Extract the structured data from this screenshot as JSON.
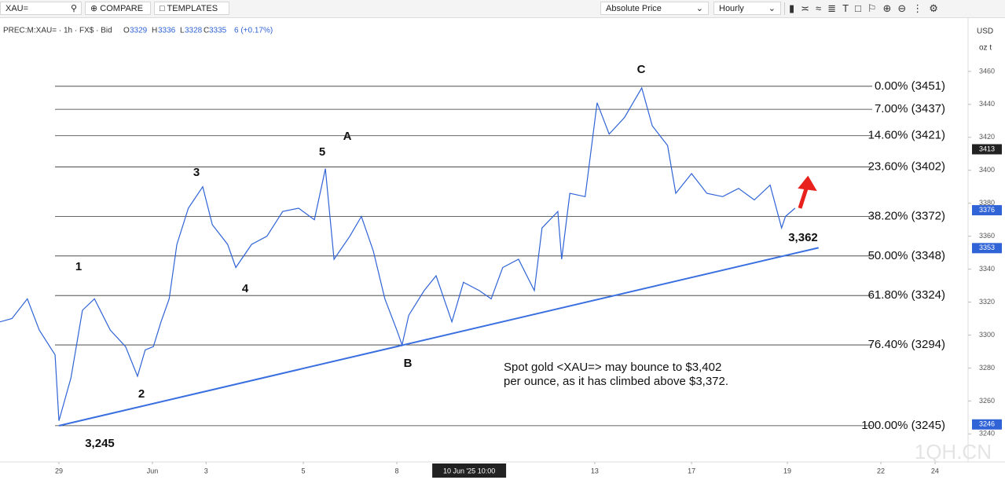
{
  "toolbar": {
    "search": "XAU=",
    "compare": "COMPARE",
    "templates": "TEMPLATES",
    "price_mode": "Absolute Price",
    "interval": "Hourly"
  },
  "legend": {
    "symbol": "PREC:M:XAU= · 1h · FX$ · Bid",
    "open_key": "O",
    "open": 3329,
    "high_key": "H",
    "high": 3336,
    "low_key": "L",
    "low": 3328,
    "close_key": "C",
    "close": 3335,
    "change": "6 (+0.17%)"
  },
  "axis_units": {
    "currency": "USD",
    "unit": "oz t"
  },
  "watermark": "1QH.CN",
  "chart_data": {
    "type": "line",
    "color": "#2f63d6",
    "x": [
      -1.23,
      -0.98,
      -0.66,
      -0.41,
      -0.08,
      0,
      0.25,
      0.49,
      0.74,
      1.07,
      1.39,
      1.64,
      1.8,
      1.97,
      2.13,
      2.3,
      2.46,
      2.7,
      3,
      3.2,
      3.52,
      3.69,
      4.02,
      4.34,
      4.67,
      5,
      5.33,
      5.56,
      5.74,
      6.07,
      6.31,
      6.56,
      6.8,
      7.05,
      7.16,
      7.3,
      7.62,
      7.87,
      8.2,
      8.44,
      8.77,
      9.02,
      9.26,
      9.59,
      9.92,
      10.08,
      10.41,
      10.49,
      10.66,
      10.98,
      11.23,
      11.48,
      11.8,
      12.16,
      12.38,
      12.7,
      12.87,
      13.2,
      13.52,
      13.85,
      14.18,
      14.51,
      14.84,
      15.08,
      15.16,
      15.36
    ],
    "values": [
      3308,
      3310,
      3322,
      3303,
      3288,
      3248,
      3274,
      3315,
      3322,
      3303,
      3293,
      3275,
      3291,
      3293,
      3308,
      3322,
      3355,
      3377,
      3390,
      3367,
      3355,
      3341,
      3355,
      3360,
      3375,
      3377,
      3370,
      3401,
      3346,
      3360,
      3372,
      3351,
      3322,
      3303,
      3294,
      3312,
      3327,
      3336,
      3308,
      3332,
      3327,
      3322,
      3341,
      3346,
      3327,
      3365,
      3375,
      3346,
      3386,
      3384,
      3441,
      3422,
      3432,
      3450,
      3427,
      3415,
      3386,
      3398,
      3386,
      3384,
      3389,
      3382,
      3391,
      3365,
      3372,
      3377
    ],
    "xlim": [
      -1.23,
      18.97
    ],
    "ylim": [
      3223,
      3490
    ],
    "yticks": [
      3240,
      3260,
      3280,
      3300,
      3320,
      3340,
      3360,
      3380,
      3400,
      3420,
      3440,
      3460
    ],
    "xticks": [
      {
        "value": 0,
        "label": "29"
      },
      {
        "value": 1.95,
        "label": "Jun"
      },
      {
        "value": 3.07,
        "label": "3"
      },
      {
        "value": 5.1,
        "label": "5"
      },
      {
        "value": 7.05,
        "label": "8"
      },
      {
        "value": 11.18,
        "label": "13"
      },
      {
        "value": 13.2,
        "label": "17"
      },
      {
        "value": 15.2,
        "label": "19"
      },
      {
        "value": 17.15,
        "label": "22"
      },
      {
        "value": 18.28,
        "label": "24"
      }
    ],
    "crosshair_x": {
      "value": 8.56,
      "label": "10 Jun '25   10:00"
    },
    "fib_levels": [
      {
        "value": 3451,
        "label": "0.00% (3451)"
      },
      {
        "value": 3437,
        "label": "7.00% (3437)"
      },
      {
        "value": 3421,
        "label": "14.60% (3421)"
      },
      {
        "value": 3402,
        "label": "23.60% (3402)"
      },
      {
        "value": 3372,
        "label": "38.20% (3372)"
      },
      {
        "value": 3348,
        "label": "50.00% (3348)"
      },
      {
        "value": 3324,
        "label": "61.80% (3324)"
      },
      {
        "value": 3294,
        "label": "76.40% (3294)"
      },
      {
        "value": 3245,
        "label": "100.00% (3245)"
      }
    ],
    "trendline": {
      "x": [
        0,
        15.85
      ],
      "values": [
        3245,
        3353
      ],
      "color": "#3a6fe0"
    },
    "price_badges": [
      {
        "value": 3413,
        "color": "#222222"
      },
      {
        "value": 3376,
        "color": "#2f63d6"
      },
      {
        "value": 3353,
        "color": "#2f63d6"
      },
      {
        "value": 3246,
        "color": "#2f63d6"
      }
    ],
    "wave_labels": [
      "1",
      "2",
      "3",
      "4",
      "5",
      "A",
      "B",
      "C",
      "3,245",
      "3,362"
    ],
    "note": [
      "Spot gold <XAU=> may bounce to $3,402",
      "per ounce, as it has climbed above $3,372."
    ]
  }
}
